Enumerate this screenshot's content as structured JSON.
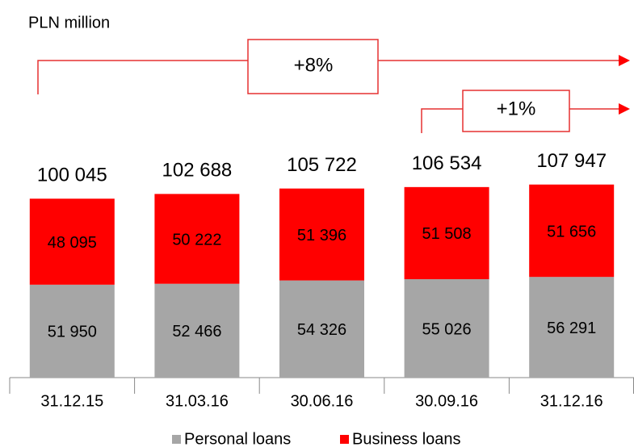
{
  "chart_data": {
    "type": "bar",
    "stacked": true,
    "subtitle": "PLN million",
    "categories": [
      "31.12.15",
      "31.03.16",
      "30.06.16",
      "30.09.16",
      "31.12.16"
    ],
    "series": [
      {
        "name": "Personal loans",
        "color": "#a6a6a6",
        "values": [
          51950,
          52466,
          54326,
          55026,
          56291
        ],
        "value_labels": [
          "51 950",
          "52 466",
          "54 326",
          "55 026",
          "56 291"
        ]
      },
      {
        "name": "Business loans",
        "color": "#ff0000",
        "values": [
          48095,
          50222,
          51396,
          51508,
          51656
        ],
        "value_labels": [
          "48 095",
          "50 222",
          "51 396",
          "51 508",
          "51 656"
        ]
      }
    ],
    "totals": [
      100045,
      102688,
      105722,
      106534,
      107947
    ],
    "total_labels": [
      "100 045",
      "102 688",
      "105 722",
      "106 534",
      "107 947"
    ],
    "annotations": [
      "+8%",
      "+1%"
    ],
    "ylim": [
      0,
      120000
    ]
  }
}
